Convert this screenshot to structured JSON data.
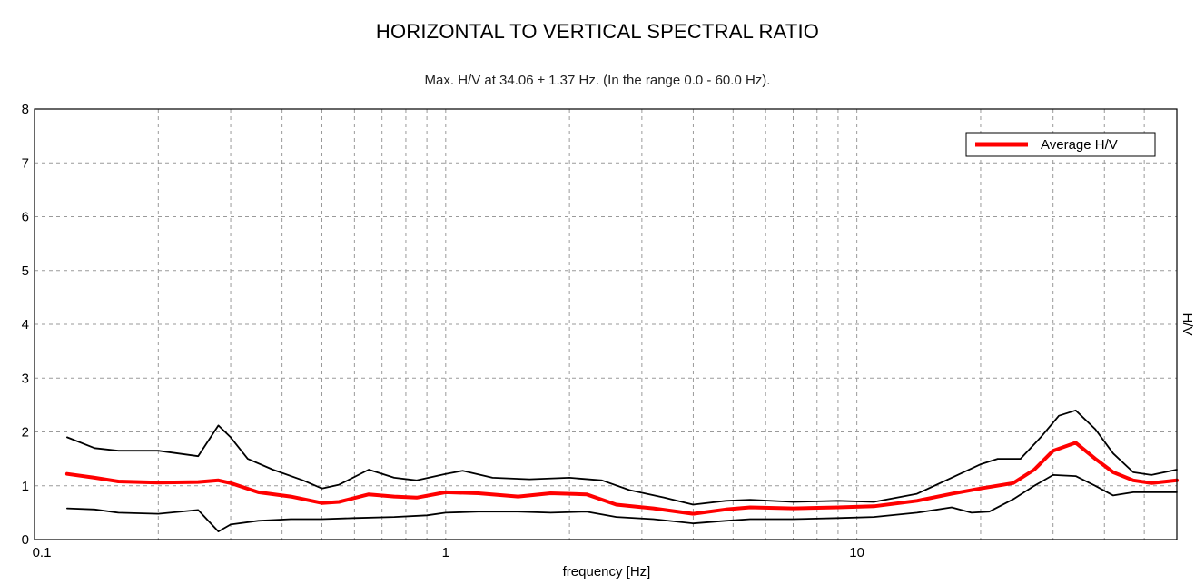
{
  "chart_data": {
    "type": "line",
    "title": "HORIZONTAL TO VERTICAL SPECTRAL RATIO",
    "subtitle": "Max. H/V at 34.06 ± 1.37 Hz. (In the range 0.0 - 60.0 Hz).",
    "xlabel": "frequency [Hz]",
    "ylabel": "H/V",
    "xscale": "log",
    "xlim": [
      0.1,
      60
    ],
    "ylim": [
      0,
      8
    ],
    "grid": true,
    "legend_position": "top-right",
    "x_tick_labels": [
      {
        "value": 0.1,
        "label": "0.1"
      },
      {
        "value": 1,
        "label": "1"
      },
      {
        "value": 10,
        "label": "10"
      }
    ],
    "y_ticks": [
      0,
      1,
      2,
      3,
      4,
      5,
      6,
      7,
      8
    ],
    "series": [
      {
        "name": "Average H/V",
        "color": "#ff0000",
        "legend": true,
        "points": [
          [
            0.12,
            1.22
          ],
          [
            0.14,
            1.15
          ],
          [
            0.16,
            1.08
          ],
          [
            0.2,
            1.06
          ],
          [
            0.25,
            1.07
          ],
          [
            0.28,
            1.1
          ],
          [
            0.3,
            1.05
          ],
          [
            0.35,
            0.88
          ],
          [
            0.42,
            0.8
          ],
          [
            0.5,
            0.68
          ],
          [
            0.55,
            0.7
          ],
          [
            0.65,
            0.84
          ],
          [
            0.75,
            0.8
          ],
          [
            0.85,
            0.78
          ],
          [
            1.0,
            0.88
          ],
          [
            1.2,
            0.86
          ],
          [
            1.5,
            0.8
          ],
          [
            1.8,
            0.86
          ],
          [
            2.2,
            0.84
          ],
          [
            2.6,
            0.65
          ],
          [
            3.2,
            0.58
          ],
          [
            4.0,
            0.48
          ],
          [
            4.8,
            0.56
          ],
          [
            5.5,
            0.6
          ],
          [
            7.0,
            0.58
          ],
          [
            9.0,
            0.6
          ],
          [
            11.0,
            0.62
          ],
          [
            14.0,
            0.72
          ],
          [
            17.0,
            0.85
          ],
          [
            20.0,
            0.95
          ],
          [
            24.0,
            1.05
          ],
          [
            27.0,
            1.3
          ],
          [
            30.0,
            1.65
          ],
          [
            34.06,
            1.8
          ],
          [
            38.0,
            1.5
          ],
          [
            42.0,
            1.25
          ],
          [
            47.0,
            1.1
          ],
          [
            52.0,
            1.05
          ],
          [
            60.0,
            1.1
          ]
        ]
      },
      {
        "name": "",
        "color": "#000000",
        "legend": false,
        "points": [
          [
            0.12,
            1.9
          ],
          [
            0.14,
            1.7
          ],
          [
            0.16,
            1.65
          ],
          [
            0.2,
            1.65
          ],
          [
            0.25,
            1.55
          ],
          [
            0.28,
            2.12
          ],
          [
            0.3,
            1.9
          ],
          [
            0.33,
            1.5
          ],
          [
            0.38,
            1.3
          ],
          [
            0.45,
            1.1
          ],
          [
            0.5,
            0.95
          ],
          [
            0.55,
            1.02
          ],
          [
            0.65,
            1.3
          ],
          [
            0.75,
            1.15
          ],
          [
            0.85,
            1.1
          ],
          [
            1.0,
            1.22
          ],
          [
            1.1,
            1.28
          ],
          [
            1.3,
            1.15
          ],
          [
            1.6,
            1.12
          ],
          [
            2.0,
            1.15
          ],
          [
            2.4,
            1.1
          ],
          [
            2.8,
            0.92
          ],
          [
            3.4,
            0.78
          ],
          [
            4.0,
            0.65
          ],
          [
            4.8,
            0.72
          ],
          [
            5.5,
            0.74
          ],
          [
            7.0,
            0.7
          ],
          [
            9.0,
            0.72
          ],
          [
            11.0,
            0.7
          ],
          [
            14.0,
            0.85
          ],
          [
            17.0,
            1.15
          ],
          [
            20.0,
            1.4
          ],
          [
            22.0,
            1.5
          ],
          [
            25.0,
            1.5
          ],
          [
            28.0,
            1.9
          ],
          [
            31.0,
            2.3
          ],
          [
            34.06,
            2.4
          ],
          [
            38.0,
            2.05
          ],
          [
            42.0,
            1.6
          ],
          [
            47.0,
            1.25
          ],
          [
            52.0,
            1.2
          ],
          [
            60.0,
            1.3
          ]
        ]
      },
      {
        "name": "",
        "color": "#000000",
        "legend": false,
        "points": [
          [
            0.12,
            0.58
          ],
          [
            0.14,
            0.56
          ],
          [
            0.16,
            0.5
          ],
          [
            0.2,
            0.48
          ],
          [
            0.25,
            0.55
          ],
          [
            0.28,
            0.15
          ],
          [
            0.3,
            0.28
          ],
          [
            0.35,
            0.35
          ],
          [
            0.42,
            0.38
          ],
          [
            0.5,
            0.38
          ],
          [
            0.6,
            0.4
          ],
          [
            0.75,
            0.42
          ],
          [
            0.9,
            0.45
          ],
          [
            1.0,
            0.5
          ],
          [
            1.2,
            0.52
          ],
          [
            1.5,
            0.52
          ],
          [
            1.8,
            0.5
          ],
          [
            2.2,
            0.52
          ],
          [
            2.6,
            0.42
          ],
          [
            3.2,
            0.38
          ],
          [
            4.0,
            0.3
          ],
          [
            4.8,
            0.35
          ],
          [
            5.5,
            0.38
          ],
          [
            7.0,
            0.38
          ],
          [
            9.0,
            0.4
          ],
          [
            11.0,
            0.42
          ],
          [
            14.0,
            0.5
          ],
          [
            17.0,
            0.6
          ],
          [
            19.0,
            0.5
          ],
          [
            21.0,
            0.52
          ],
          [
            24.0,
            0.75
          ],
          [
            27.0,
            1.0
          ],
          [
            30.0,
            1.2
          ],
          [
            34.06,
            1.18
          ],
          [
            38.0,
            1.0
          ],
          [
            42.0,
            0.82
          ],
          [
            47.0,
            0.88
          ],
          [
            52.0,
            0.88
          ],
          [
            60.0,
            0.88
          ]
        ]
      }
    ]
  }
}
